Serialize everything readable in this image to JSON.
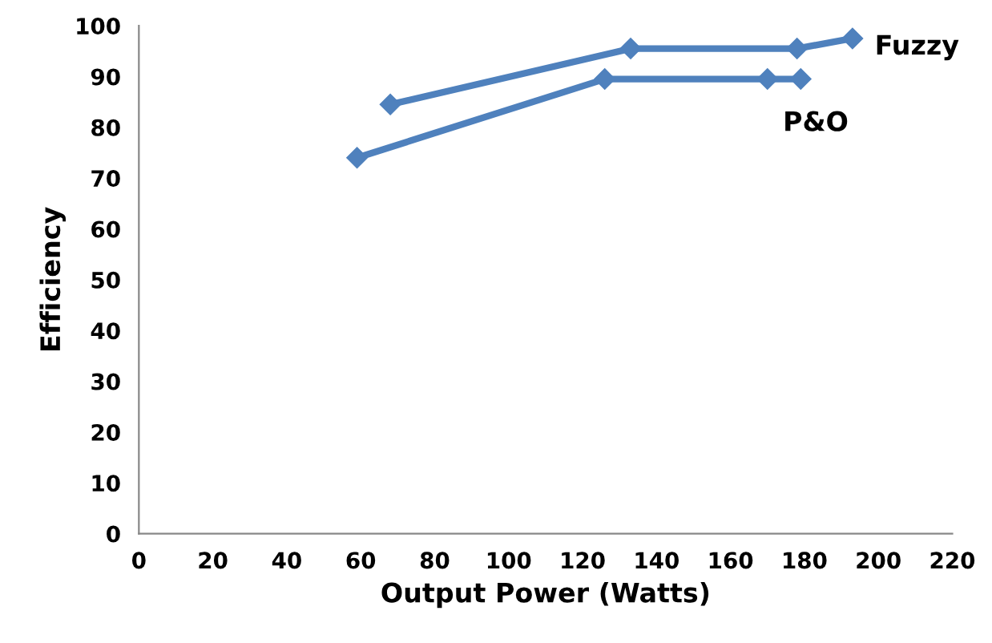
{
  "chart_data": {
    "type": "line",
    "xlabel": "Output Power (Watts)",
    "ylabel": "Efficiency",
    "series": [
      {
        "name": "Fuzzy",
        "color": "#4f81bd",
        "x": [
          68,
          133,
          178,
          193
        ],
        "values": [
          84.5,
          95.5,
          95.5,
          97.5
        ]
      },
      {
        "name": "P&O",
        "color": "#4f81bd",
        "x": [
          59,
          126,
          170,
          179
        ],
        "values": [
          74,
          89.5,
          89.5,
          89.5
        ]
      }
    ],
    "xlim": [
      0,
      220
    ],
    "xticks": [
      0,
      20,
      40,
      60,
      80,
      100,
      120,
      140,
      160,
      180,
      200,
      220
    ],
    "ylim": [
      0,
      100
    ],
    "yticks": [
      0,
      10,
      20,
      30,
      40,
      50,
      60,
      70,
      80,
      90,
      100
    ],
    "marker": "diamond",
    "line_style": "solid",
    "grid": false,
    "legend": false
  }
}
